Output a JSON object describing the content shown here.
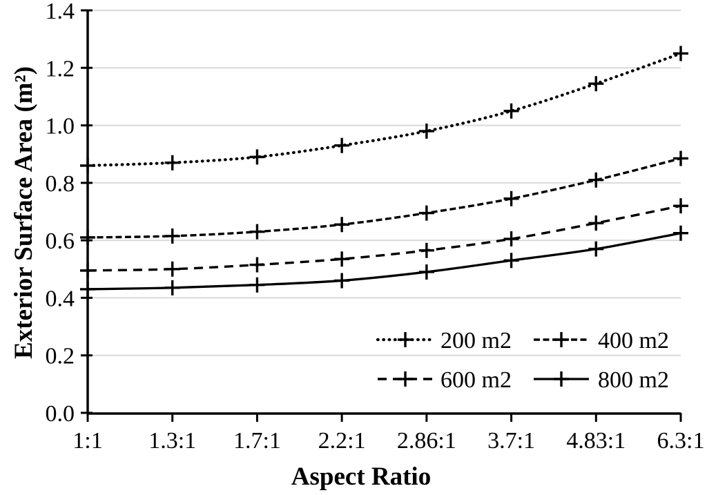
{
  "chart_data": {
    "type": "line",
    "title": "",
    "xlabel": "Aspect Ratio",
    "ylabel": "Exterior Surface Area (m²)",
    "categories": [
      "1:1",
      "1.3:1",
      "1.7:1",
      "2.2:1",
      "2.86:1",
      "3.7:1",
      "4.83:1",
      "6.3:1"
    ],
    "ylim": [
      0.0,
      1.4
    ],
    "ytick_step": 0.2,
    "ytick_labels": [
      "0.0",
      "0.2",
      "0.4",
      "0.6",
      "0.8",
      "1.0",
      "1.2",
      "1.4"
    ],
    "grid": "horizontal-only",
    "legend_position": "inside-bottom-right",
    "marker": "plus",
    "series": [
      {
        "name": "200 m2",
        "style": "dotted",
        "values": [
          0.86,
          0.87,
          0.89,
          0.93,
          0.98,
          1.05,
          1.145,
          1.25
        ]
      },
      {
        "name": "400 m2",
        "style": "dash",
        "values": [
          0.61,
          0.615,
          0.63,
          0.655,
          0.695,
          0.745,
          0.81,
          0.885
        ]
      },
      {
        "name": "600 m2",
        "style": "longdash",
        "values": [
          0.495,
          0.5,
          0.515,
          0.535,
          0.565,
          0.605,
          0.66,
          0.72
        ]
      },
      {
        "name": "800 m2",
        "style": "solid",
        "values": [
          0.43,
          0.435,
          0.445,
          0.46,
          0.49,
          0.53,
          0.57,
          0.625
        ]
      }
    ],
    "colors": {
      "line": "#000000",
      "grid": "#d9d9d9",
      "background": "#ffffff",
      "text": "#000000"
    }
  }
}
